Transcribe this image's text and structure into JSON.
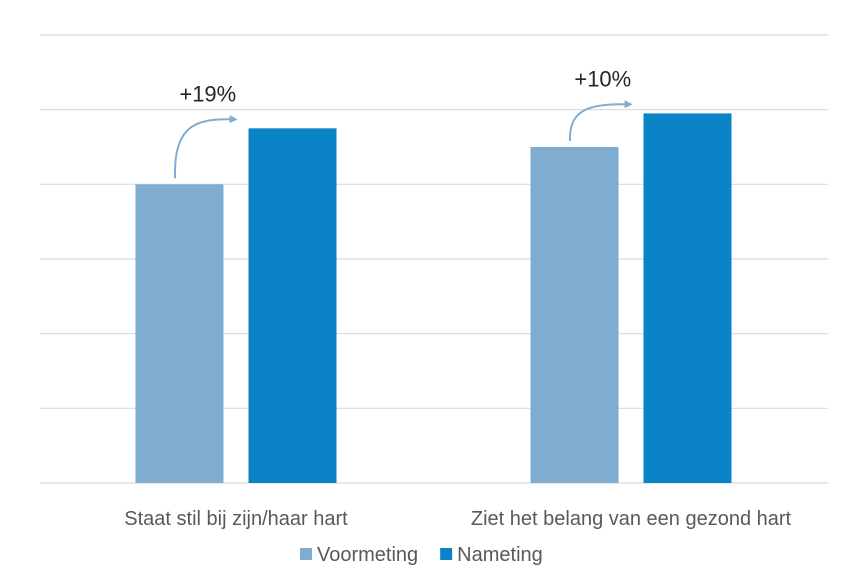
{
  "chart_data": {
    "type": "bar",
    "categories": [
      "Staat stil bij zijn/haar hart",
      "Ziet het belang van een gezond hart"
    ],
    "series": [
      {
        "name": "Voormeting",
        "values": [
          40,
          45
        ],
        "color": "#7fadd2"
      },
      {
        "name": "Nameting",
        "values": [
          47.5,
          49.5
        ],
        "color": "#0a84c7"
      }
    ],
    "annotations": [
      "+19%",
      "+10%"
    ],
    "ylim": [
      0,
      60
    ],
    "gridlines": [
      0,
      10,
      20,
      30,
      40,
      50,
      60
    ],
    "grid": true,
    "y_tick_labels_shown": false,
    "legend": "bottom",
    "colors": {
      "gridline": "#d9d9d9",
      "text": "#595959",
      "arrow": "#7fadd2"
    }
  }
}
